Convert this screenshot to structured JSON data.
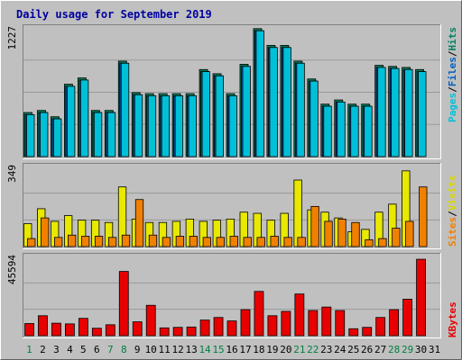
{
  "title": "Daily usage for September 2019",
  "colors": {
    "background": "#c0c0c0",
    "panel": "#c0c0c0",
    "grid": "#9a9a9a",
    "title": "#0000a0",
    "hits": "#00c8c0",
    "files": "#0060c0",
    "pages": "#00c0d8",
    "visits": "#e8e800",
    "sites": "#f08000",
    "kbytes": "#e80000",
    "separator": "#000000",
    "weekend_label": "#008040",
    "day_label": "#000000"
  },
  "axis_labels": {
    "pages": "Pages",
    "files": "Files",
    "hits": "Hits",
    "sites": "Sites",
    "visits": "Visits",
    "kbytes": "KBytes",
    "sep": "/"
  },
  "chart_data": [
    {
      "type": "bar",
      "title": "Daily usage for September 2019",
      "categories": [
        "1",
        "2",
        "3",
        "4",
        "5",
        "6",
        "7",
        "8",
        "9",
        "10",
        "11",
        "12",
        "13",
        "14",
        "15",
        "16",
        "17",
        "18",
        "19",
        "20",
        "21",
        "22",
        "23",
        "24",
        "25",
        "26",
        "27",
        "28",
        "29",
        "30",
        "31"
      ],
      "weekend_days": [
        1,
        7,
        8,
        14,
        15,
        21,
        22,
        28,
        29
      ],
      "ymax_label": "1227",
      "ylim": [
        0,
        1227
      ],
      "series": [
        {
          "name": "Hits",
          "values": [
            420,
            440,
            380,
            690,
            750,
            440,
            440,
            910,
            610,
            600,
            600,
            600,
            600,
            830,
            790,
            600,
            880,
            1220,
            1060,
            1060,
            910,
            740,
            500,
            540,
            500,
            500,
            870,
            860,
            850,
            830,
            0
          ]
        },
        {
          "name": "Files",
          "values": [
            400,
            420,
            360,
            670,
            730,
            420,
            420,
            890,
            590,
            580,
            580,
            580,
            580,
            810,
            770,
            580,
            860,
            1200,
            1040,
            1040,
            890,
            720,
            480,
            520,
            480,
            480,
            850,
            840,
            830,
            810,
            0
          ]
        },
        {
          "name": "Pages",
          "values": [
            400,
            420,
            360,
            670,
            730,
            420,
            420,
            890,
            590,
            580,
            580,
            580,
            580,
            810,
            770,
            580,
            860,
            1200,
            1040,
            1040,
            890,
            720,
            480,
            520,
            480,
            480,
            850,
            840,
            830,
            810,
            0
          ]
        }
      ]
    },
    {
      "type": "bar",
      "ymax_label": "349",
      "ylim": [
        0,
        349
      ],
      "series": [
        {
          "name": "Visits",
          "values": [
            100,
            165,
            110,
            135,
            115,
            115,
            105,
            260,
            120,
            105,
            105,
            110,
            120,
            110,
            115,
            120,
            150,
            145,
            115,
            145,
            290,
            160,
            150,
            125,
            65,
            75,
            150,
            185,
            330,
            0,
            0
          ]
        },
        {
          "name": "Sites",
          "values": [
            35,
            125,
            40,
            50,
            45,
            45,
            40,
            50,
            205,
            50,
            40,
            45,
            45,
            40,
            40,
            45,
            40,
            40,
            45,
            40,
            40,
            175,
            110,
            120,
            105,
            30,
            35,
            80,
            110,
            260,
            0
          ]
        }
      ]
    },
    {
      "type": "bar",
      "ymax_label": "45594",
      "ylim": [
        0,
        45594
      ],
      "series": [
        {
          "name": "KBytes",
          "values": [
            7000,
            11500,
            7200,
            6800,
            10000,
            4300,
            6300,
            37000,
            8000,
            17500,
            4500,
            4800,
            5000,
            9000,
            10500,
            8500,
            15000,
            25500,
            11500,
            14000,
            24000,
            14500,
            16500,
            14500,
            4000,
            4800,
            10500,
            15000,
            21000,
            44000,
            0
          ]
        }
      ]
    }
  ]
}
